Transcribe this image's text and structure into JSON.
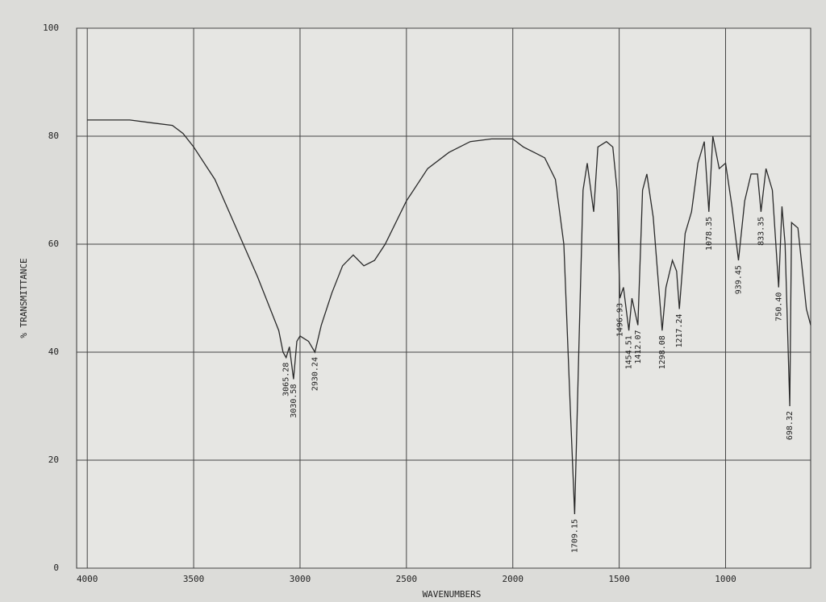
{
  "chart_data": {
    "type": "line",
    "x_label": "WAVENUMBERS",
    "y_label": "% TRANSMITTANCE",
    "color": "#2a2a2a",
    "grid": true,
    "xlim": [
      4050,
      600
    ],
    "ylim": [
      0,
      100
    ],
    "xticks": [
      4000,
      3500,
      3000,
      2500,
      2000,
      1500,
      1000
    ],
    "yticks": [
      0,
      20,
      40,
      60,
      80,
      100
    ],
    "x": [
      4000,
      3800,
      3700,
      3600,
      3550,
      3500,
      3400,
      3300,
      3200,
      3100,
      3080,
      3065.28,
      3050,
      3030.58,
      3015,
      3000,
      2960,
      2930.24,
      2900,
      2850,
      2800,
      2750,
      2700,
      2650,
      2600,
      2500,
      2400,
      2300,
      2200,
      2100,
      2000,
      1950,
      1900,
      1850,
      1800,
      1760,
      1730,
      1709.15,
      1690,
      1670,
      1650,
      1620,
      1600,
      1560,
      1530,
      1510,
      1496.93,
      1480,
      1454.51,
      1440,
      1412.07,
      1390,
      1370,
      1340,
      1298.08,
      1280,
      1250,
      1230,
      1217.24,
      1190,
      1160,
      1130,
      1100,
      1078.35,
      1060,
      1030,
      1000,
      970,
      939.45,
      910,
      880,
      850,
      833.35,
      810,
      780,
      750.4,
      735,
      720,
      698.32,
      690,
      660,
      620,
      600
    ],
    "values": [
      83,
      83,
      82.5,
      82,
      80.5,
      78,
      72,
      63,
      54,
      44,
      40,
      39,
      41,
      35,
      42,
      43,
      42,
      40,
      45,
      51,
      56,
      58,
      56,
      57,
      60,
      68,
      74,
      77,
      79,
      79.5,
      79.5,
      78,
      77,
      76,
      72,
      60,
      30,
      10,
      40,
      70,
      75,
      66,
      78,
      79,
      78,
      70,
      50,
      52,
      44,
      50,
      45,
      70,
      73,
      65,
      44,
      52,
      57,
      55,
      48,
      62,
      66,
      75,
      79,
      66,
      80,
      74,
      75,
      67,
      57,
      68,
      73,
      73,
      66,
      74,
      70,
      52,
      67,
      60,
      30,
      64,
      63,
      48,
      45
    ],
    "annotations": [
      {
        "text": "3065.28",
        "x": 3065.28,
        "y": 39
      },
      {
        "text": "3030.58",
        "x": 3030.58,
        "y": 35
      },
      {
        "text": "2930.24",
        "x": 2930.24,
        "y": 40
      },
      {
        "text": "1709.15",
        "x": 1709.15,
        "y": 10
      },
      {
        "text": "1496.93",
        "x": 1496.93,
        "y": 50
      },
      {
        "text": "1454.51",
        "x": 1454.51,
        "y": 44
      },
      {
        "text": "1412.07",
        "x": 1412.07,
        "y": 45
      },
      {
        "text": "1298.08",
        "x": 1298.08,
        "y": 44
      },
      {
        "text": "1217.24",
        "x": 1217.24,
        "y": 48
      },
      {
        "text": "1078.35",
        "x": 1078.35,
        "y": 66
      },
      {
        "text": "939.45",
        "x": 939.45,
        "y": 57
      },
      {
        "text": "833.35",
        "x": 833.35,
        "y": 66
      },
      {
        "text": "750.40",
        "x": 750.4,
        "y": 52
      },
      {
        "text": "698.32",
        "x": 698.32,
        "y": 30
      }
    ]
  }
}
